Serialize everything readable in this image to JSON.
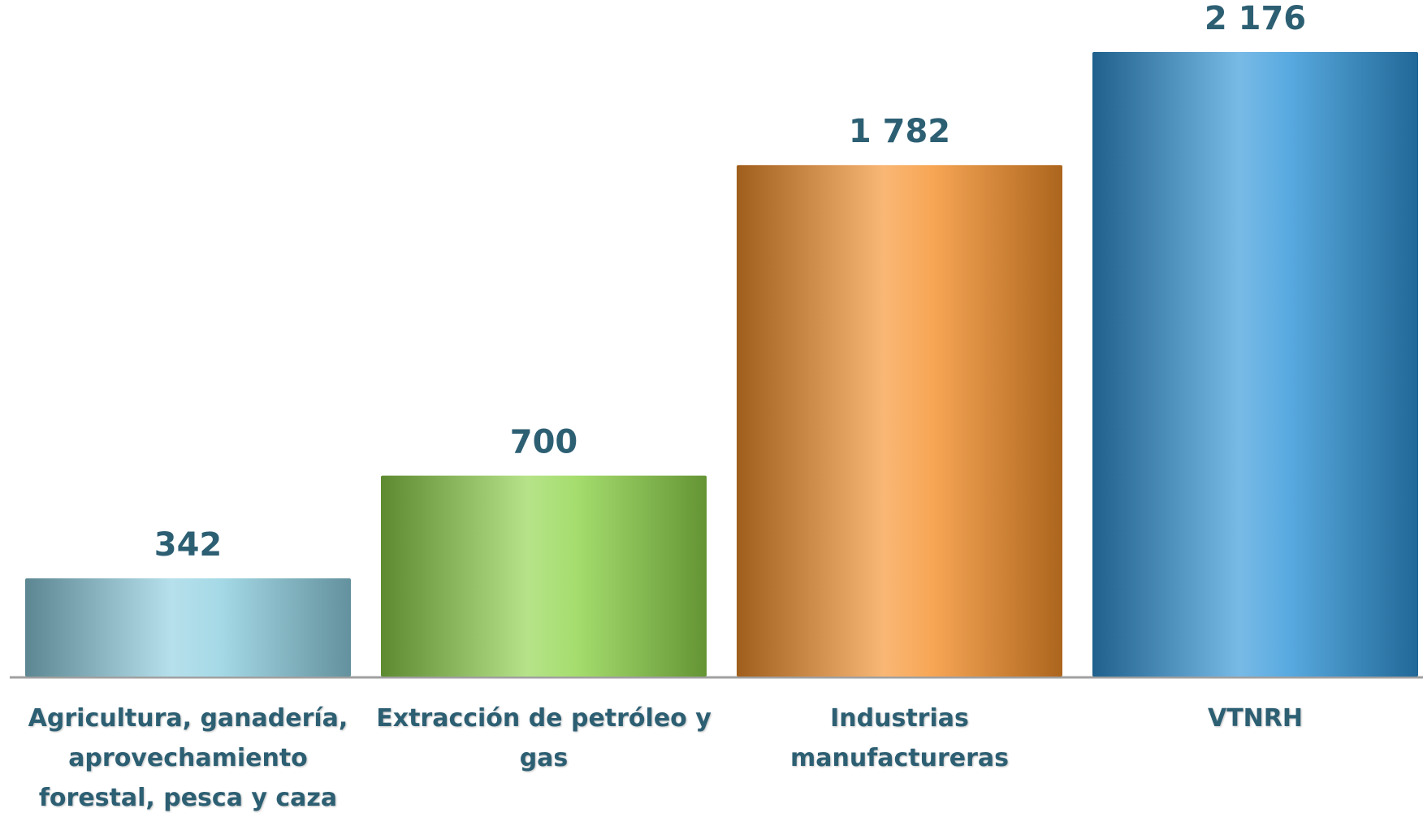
{
  "chart_data": {
    "type": "bar",
    "categories": [
      "Agricultura, ganadería, aprovechamiento forestal, pesca y caza",
      "Extracción de petróleo y gas",
      "Industrias manufactureras",
      "VTNRH"
    ],
    "values": [
      342,
      700,
      1782,
      2176
    ],
    "value_labels": [
      "342",
      "700",
      "1 782",
      "2 176"
    ],
    "colors": [
      "#8ecfe0",
      "#8fd44a",
      "#f5902a",
      "#2f95d8"
    ]
  }
}
